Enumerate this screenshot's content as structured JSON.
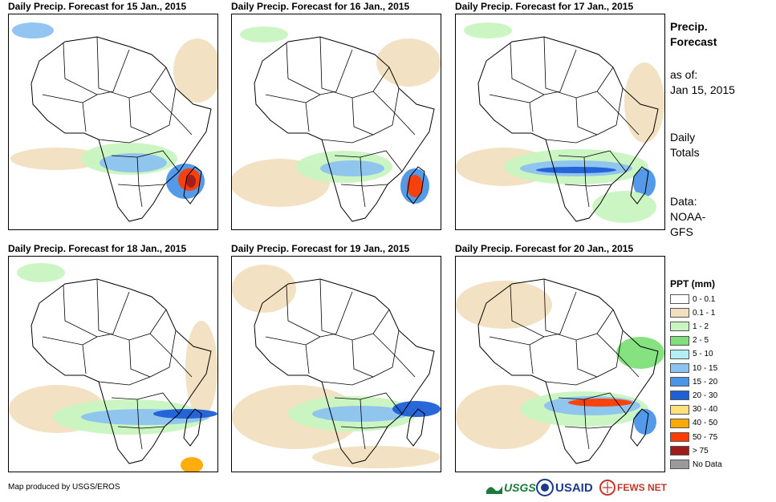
{
  "panels": [
    {
      "title": "Daily Precip. Forecast for 15 Jan., 2015",
      "day": 15
    },
    {
      "title": "Daily Precip. Forecast for 16 Jan., 2015",
      "day": 16
    },
    {
      "title": "Daily Precip. Forecast for 17 Jan., 2015",
      "day": 17
    },
    {
      "title": "Daily Precip. Forecast for 18 Jan., 2015",
      "day": 18
    },
    {
      "title": "Daily Precip. Forecast for 19 Jan., 2015",
      "day": 19
    },
    {
      "title": "Daily Precip. Forecast for 20 Jan., 2015",
      "day": 20
    }
  ],
  "sidebar": {
    "title_line1": "Precip.",
    "title_line2": "Forecast",
    "asof_line1": "as of:",
    "asof_line2": "Jan 15, 2015",
    "totals_line1": "Daily",
    "totals_line2": "Totals",
    "data_line1": "Data:",
    "data_line2": "NOAA-",
    "data_line3": "GFS"
  },
  "legend": {
    "title": "PPT (mm)",
    "items": [
      {
        "label": "0 - 0.1",
        "color": "#ffffff"
      },
      {
        "label": "0.1 - 1",
        "color": "#f2dfc0"
      },
      {
        "label": "1 - 2",
        "color": "#c8f5c0"
      },
      {
        "label": "2 - 5",
        "color": "#7fe07a"
      },
      {
        "label": "5 - 10",
        "color": "#b4eef5"
      },
      {
        "label": "10 - 15",
        "color": "#8cc2f0"
      },
      {
        "label": "15 - 20",
        "color": "#4b95e8"
      },
      {
        "label": "20 - 30",
        "color": "#1f5fd6"
      },
      {
        "label": "30 - 40",
        "color": "#ffe07a"
      },
      {
        "label": "40 - 50",
        "color": "#ffa800"
      },
      {
        "label": "50 - 75",
        "color": "#ff3c00"
      },
      {
        "label": "> 75",
        "color": "#a01c1c"
      },
      {
        "label": "No Data",
        "color": "#9a9a9a"
      }
    ]
  },
  "credit": "Map produced by USGS/EROS",
  "logos": {
    "usgs": "USGS",
    "usaid": "USAID",
    "fewsnet": "FEWS NET"
  }
}
